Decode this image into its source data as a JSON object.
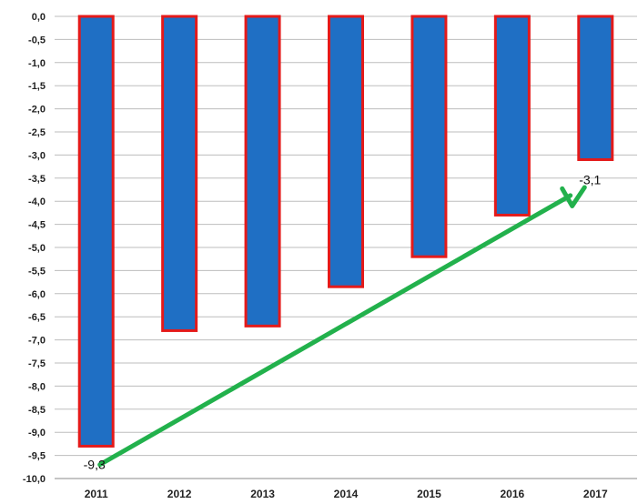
{
  "chart_data": {
    "type": "bar",
    "categories": [
      "2011",
      "2012",
      "2013",
      "2014",
      "2015",
      "2016",
      "2017"
    ],
    "values": [
      -9.3,
      -6.8,
      -6.7,
      -5.85,
      -5.2,
      -4.3,
      -3.1
    ],
    "ylim": [
      -10,
      0
    ],
    "yticks": [
      "0,0",
      "-0,5",
      "-1,0",
      "-1,5",
      "-2,0",
      "-2,5",
      "-3,0",
      "-3,5",
      "-4,0",
      "-4,5",
      "-5,0",
      "-5,5",
      "-6,0",
      "-6,5",
      "-7,0",
      "-7,5",
      "-8,0",
      "-8,5",
      "-9,0",
      "-9,5",
      "-10,0"
    ],
    "grid": true,
    "title": "",
    "xlabel": "",
    "ylabel": "",
    "annotations": [
      {
        "label": "-9,3",
        "category": "2011",
        "value": -9.3
      },
      {
        "label": "-3,1",
        "category": "2017",
        "value": -3.1
      }
    ],
    "trend_arrow": {
      "from": {
        "category": "2011",
        "value": -9.7
      },
      "to": {
        "category": "2017",
        "value": -3.7
      }
    },
    "colors": {
      "bar_fill": "#1f6fc4",
      "bar_border": "#e41a1a",
      "arrow": "#22b14c",
      "grid": "#bdbdbd"
    }
  }
}
